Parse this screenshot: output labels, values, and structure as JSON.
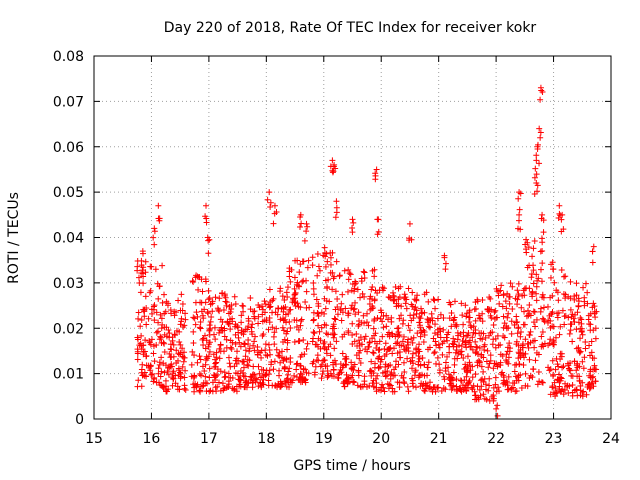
{
  "chart_data": {
    "type": "scatter",
    "title": "Day 220 of 2018, Rate Of TEC Index for receiver kokr",
    "xlabel": "GPS time / hours",
    "ylabel": "ROTI / TECUs",
    "xlim": [
      15,
      24
    ],
    "ylim": [
      0,
      0.08
    ],
    "x_ticks": [
      15,
      16,
      17,
      18,
      19,
      20,
      21,
      22,
      23,
      24
    ],
    "x_tick_labels": [
      "15",
      "16",
      "17",
      "18",
      "19",
      "20",
      "21",
      "22",
      "23",
      "24"
    ],
    "y_ticks": [
      0,
      0.01,
      0.02,
      0.03,
      0.04,
      0.05,
      0.06,
      0.07,
      0.08
    ],
    "y_tick_labels": [
      "0",
      "0.01",
      "0.02",
      "0.03",
      "0.04",
      "0.05",
      "0.06",
      "0.07",
      "0.08"
    ],
    "grid": true,
    "marker": "+",
    "color": "#ff0000",
    "series": [
      {
        "name": "ROTI",
        "x_range": [
          15.75,
          23.75
        ],
        "typical_range": [
          0.005,
          0.03
        ],
        "segments": [
          {
            "x": [
              15.75,
              16.2
            ],
            "y_range": [
              0.007,
              0.035
            ]
          },
          {
            "x": [
              16.2,
              16.6
            ],
            "y_range": [
              0.006,
              0.028
            ]
          },
          {
            "x": [
              16.7,
              17.0
            ],
            "y_range": [
              0.006,
              0.032
            ]
          },
          {
            "x": [
              17.0,
              17.5
            ],
            "y_range": [
              0.006,
              0.028
            ]
          },
          {
            "x": [
              17.5,
              18.0
            ],
            "y_range": [
              0.007,
              0.027
            ]
          },
          {
            "x": [
              18.0,
              18.4
            ],
            "y_range": [
              0.007,
              0.03
            ]
          },
          {
            "x": [
              18.4,
              18.75
            ],
            "y_range": [
              0.008,
              0.035
            ]
          },
          {
            "x": [
              18.8,
              19.3
            ],
            "y_range": [
              0.009,
              0.038
            ]
          },
          {
            "x": [
              19.3,
              19.9
            ],
            "y_range": [
              0.007,
              0.033
            ]
          },
          {
            "x": [
              19.9,
              20.5
            ],
            "y_range": [
              0.006,
              0.03
            ]
          },
          {
            "x": [
              20.5,
              21.0
            ],
            "y_range": [
              0.006,
              0.028
            ]
          },
          {
            "x": [
              21.0,
              21.6
            ],
            "y_range": [
              0.006,
              0.026
            ]
          },
          {
            "x": [
              21.6,
              22.0
            ],
            "y_range": [
              0.004,
              0.027
            ]
          },
          {
            "x": [
              22.0,
              22.5
            ],
            "y_range": [
              0.006,
              0.03
            ]
          },
          {
            "x": [
              22.5,
              22.85
            ],
            "y_range": [
              0.007,
              0.04
            ]
          },
          {
            "x": [
              22.9,
              23.3
            ],
            "y_range": [
              0.005,
              0.035
            ]
          },
          {
            "x": [
              23.3,
              23.75
            ],
            "y_range": [
              0.005,
              0.03
            ]
          }
        ],
        "peaks": [
          {
            "x": 15.85,
            "y": 0.037
          },
          {
            "x": 16.05,
            "y": 0.042
          },
          {
            "x": 16.12,
            "y": 0.047
          },
          {
            "x": 16.95,
            "y": 0.047
          },
          {
            "x": 16.98,
            "y": 0.04
          },
          {
            "x": 18.05,
            "y": 0.05
          },
          {
            "x": 18.15,
            "y": 0.047
          },
          {
            "x": 18.6,
            "y": 0.045
          },
          {
            "x": 18.7,
            "y": 0.043
          },
          {
            "x": 19.15,
            "y": 0.057
          },
          {
            "x": 19.18,
            "y": 0.056
          },
          {
            "x": 19.22,
            "y": 0.048
          },
          {
            "x": 19.5,
            "y": 0.044
          },
          {
            "x": 19.92,
            "y": 0.055
          },
          {
            "x": 19.95,
            "y": 0.044
          },
          {
            "x": 20.5,
            "y": 0.043
          },
          {
            "x": 21.1,
            "y": 0.036
          },
          {
            "x": 22.02,
            "y": 0.003
          },
          {
            "x": 22.4,
            "y": 0.05
          },
          {
            "x": 22.4,
            "y": 0.045
          },
          {
            "x": 22.7,
            "y": 0.057
          },
          {
            "x": 22.72,
            "y": 0.06
          },
          {
            "x": 22.75,
            "y": 0.064
          },
          {
            "x": 22.78,
            "y": 0.073
          },
          {
            "x": 22.7,
            "y": 0.052
          },
          {
            "x": 22.8,
            "y": 0.045
          },
          {
            "x": 23.1,
            "y": 0.047
          },
          {
            "x": 23.15,
            "y": 0.045
          },
          {
            "x": 23.7,
            "y": 0.038
          }
        ]
      }
    ]
  }
}
